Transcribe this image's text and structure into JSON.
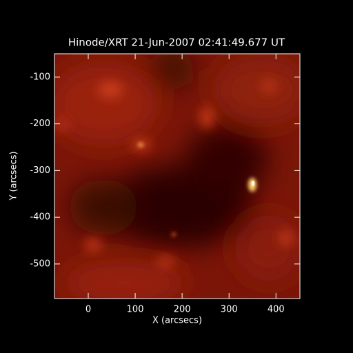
{
  "chart_data": {
    "type": "image",
    "title": "Hinode/XRT 21-Jun-2007 02:41:49.677 UT",
    "x_label": "X (arcsecs)",
    "y_label": "Y (arcsecs)",
    "xlim": [
      -72,
      451
    ],
    "ylim": [
      -574,
      -50
    ],
    "xticks": [
      0,
      100,
      200,
      300,
      400
    ],
    "yticks": [
      -100,
      -200,
      -300,
      -400,
      -500
    ]
  }
}
